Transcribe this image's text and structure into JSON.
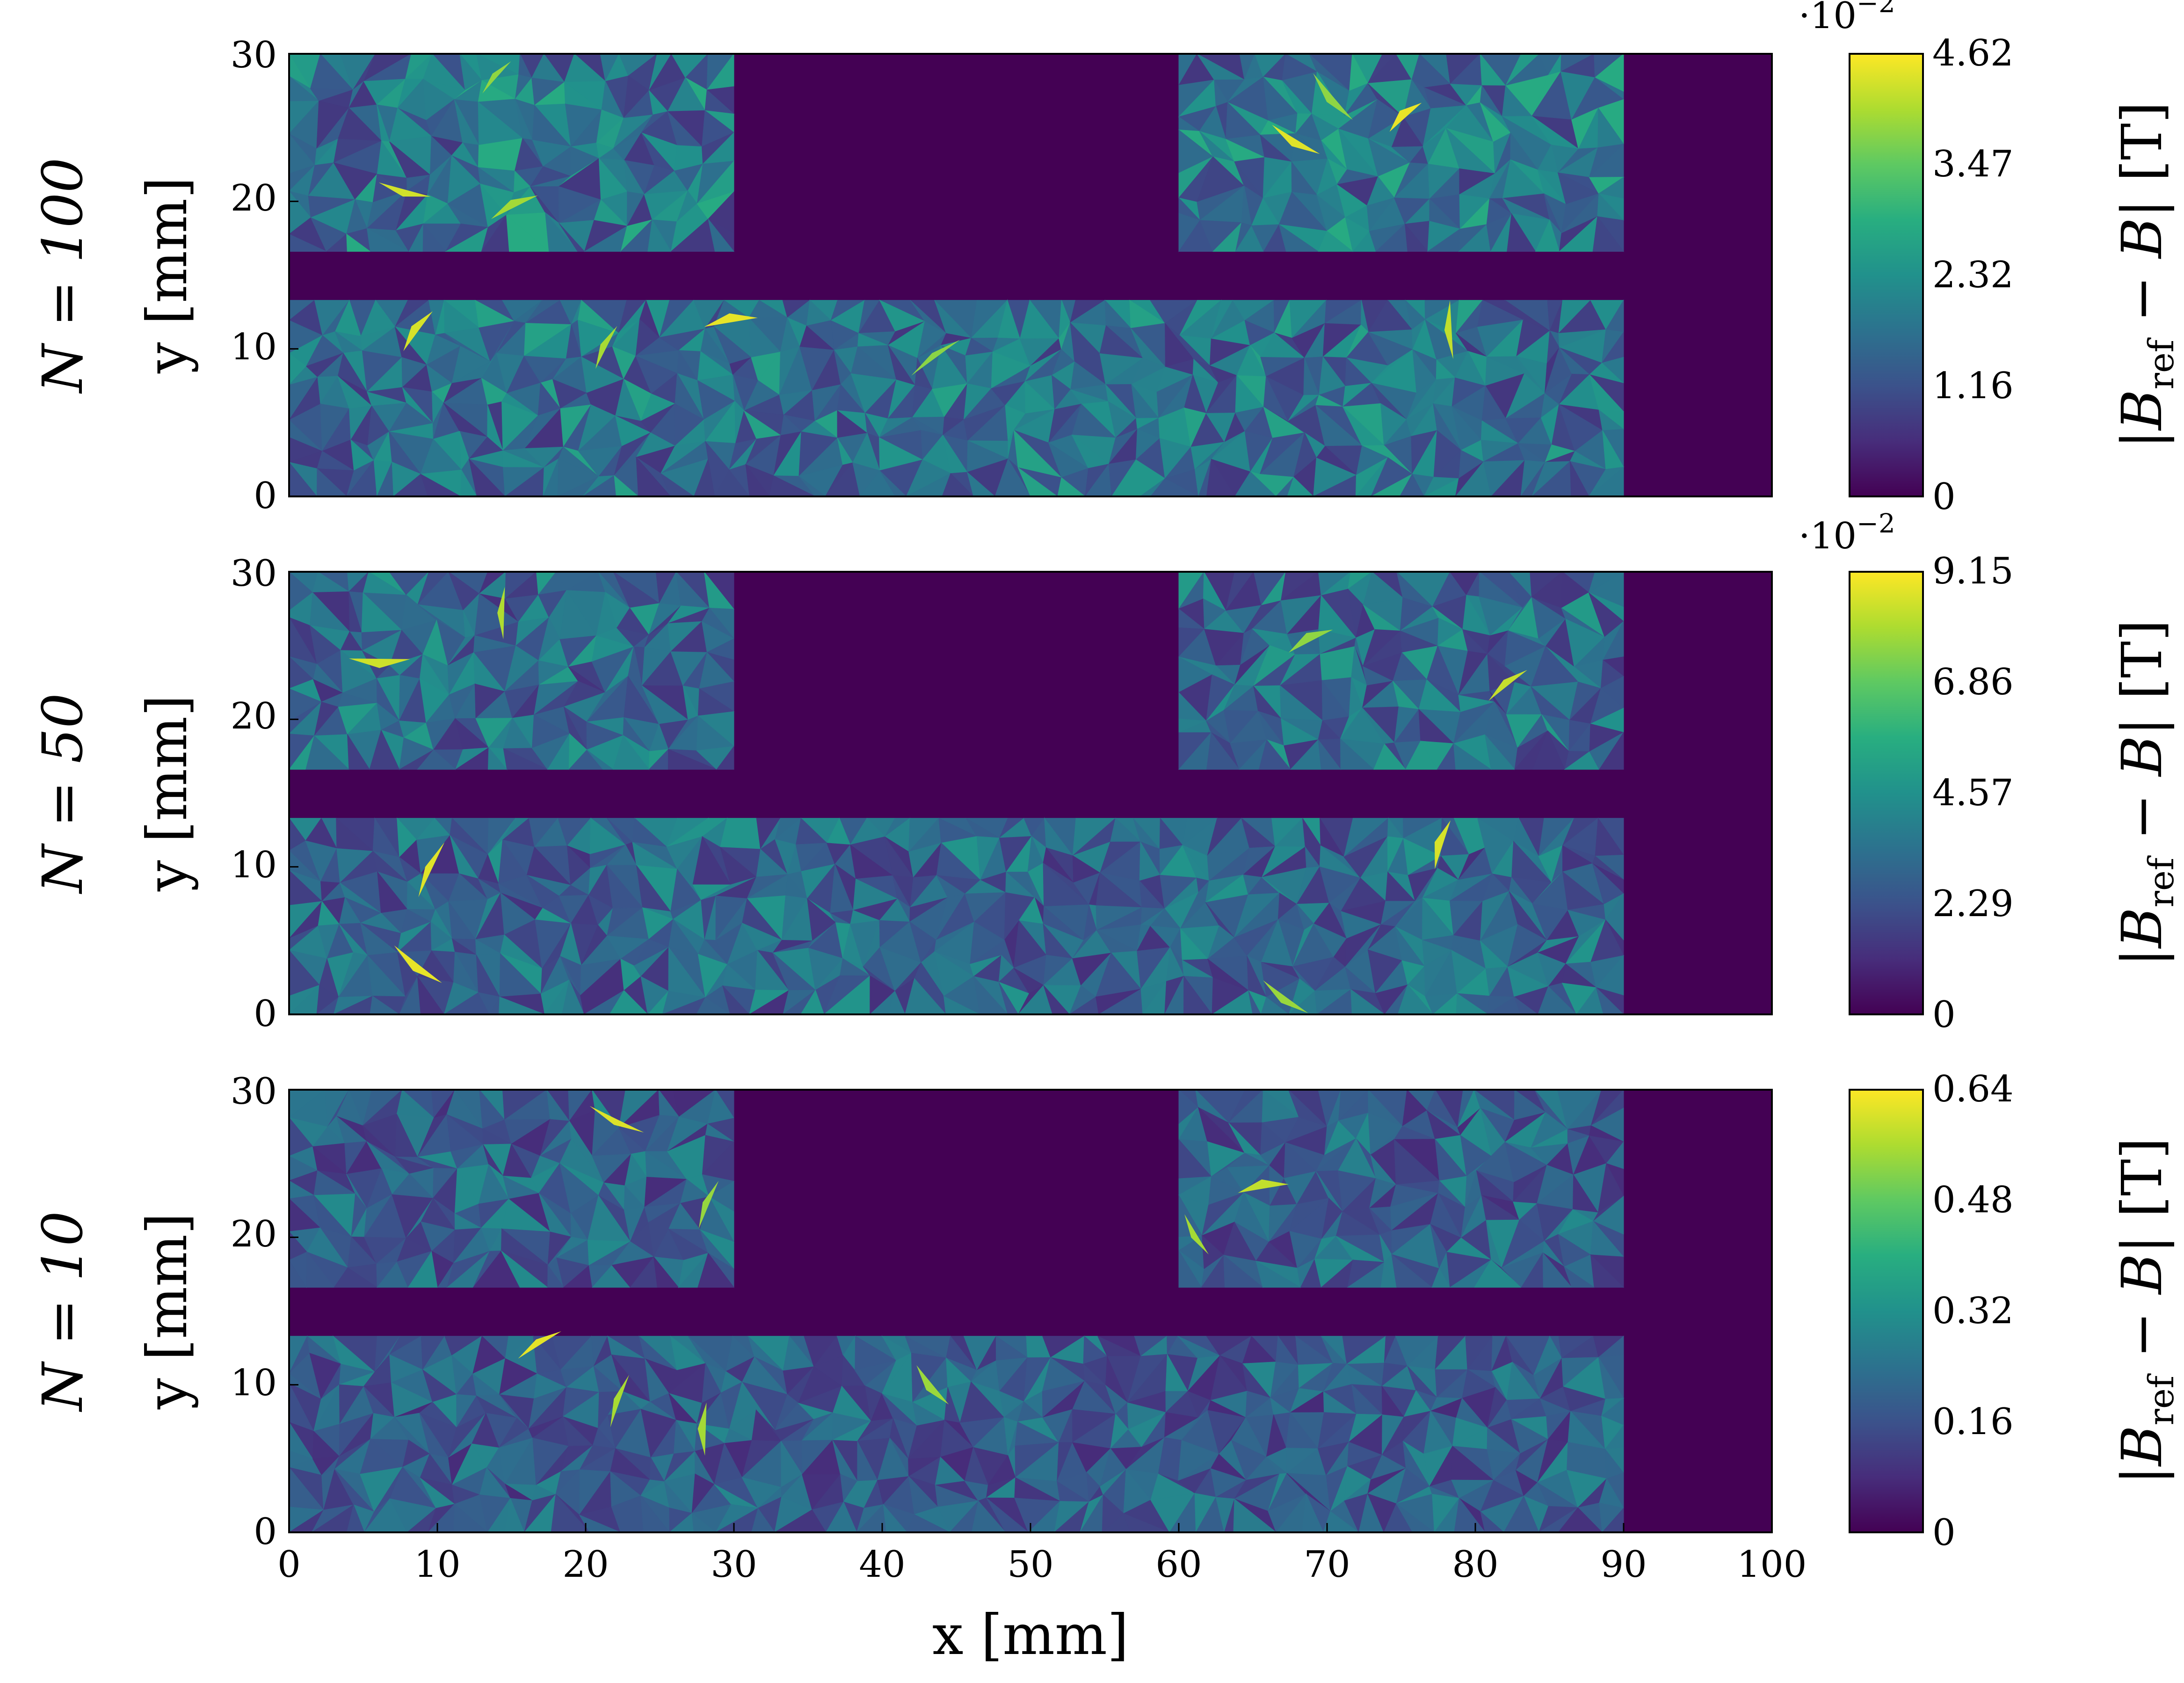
{
  "chart_data": [
    {
      "type": "heatmap",
      "panel_label": "N = 100",
      "ylabel": "y [mm]",
      "xlabel": "",
      "xlim": [
        0,
        100
      ],
      "ylim": [
        0,
        30
      ],
      "yticks": [
        "0",
        "10",
        "20",
        "30"
      ],
      "xticks": [],
      "colorbar": {
        "label": "|B_ref − B| [T]",
        "min": 0,
        "max": 4.62,
        "ticks": [
          "0",
          "1.16",
          "2.32",
          "3.47",
          "4.62"
        ],
        "scale_label": "·10^-2"
      },
      "regions": [
        {
          "name": "coil-top-left",
          "x": [
            0,
            30
          ],
          "y": [
            16.6,
            30
          ],
          "level": 0.45,
          "spots": [
            [
              14.0,
              28.4
            ],
            [
              7.8,
              20.8
            ],
            [
              15.2,
              19.6
            ]
          ]
        },
        {
          "name": "coil-top-right",
          "x": [
            60,
            90
          ],
          "y": [
            16.6,
            30
          ],
          "level": 0.45,
          "spots": [
            [
              70.4,
              27.1
            ],
            [
              67.9,
              24.2
            ],
            [
              75.3,
              25.7
            ]
          ]
        },
        {
          "name": "core-bottom",
          "x": [
            0,
            90
          ],
          "y": [
            0,
            13.3
          ],
          "level": 0.42,
          "spots": [
            [
              43.6,
              9.4
            ],
            [
              21.4,
              10.1
            ],
            [
              8.7,
              11.2
            ],
            [
              29.8,
              11.8
            ],
            [
              78.4,
              11.3
            ]
          ]
        }
      ]
    },
    {
      "type": "heatmap",
      "panel_label": "N = 50",
      "ylabel": "y [mm]",
      "xlabel": "",
      "xlim": [
        0,
        100
      ],
      "ylim": [
        0,
        30
      ],
      "yticks": [
        "0",
        "10",
        "20",
        "30"
      ],
      "xticks": [],
      "colorbar": {
        "label": "|B_ref − B| [T]",
        "min": 0,
        "max": 9.15,
        "ticks": [
          "0",
          "2.29",
          "4.57",
          "6.86",
          "9.15"
        ],
        "scale_label": "·10^-2"
      },
      "regions": [
        {
          "name": "coil-top-left",
          "x": [
            0,
            30
          ],
          "y": [
            16.6,
            30
          ],
          "level": 0.4,
          "spots": [
            [
              14.5,
              27.2
            ],
            [
              6.1,
              24.1
            ]
          ]
        },
        {
          "name": "coil-top-right",
          "x": [
            60,
            90
          ],
          "y": [
            16.6,
            30
          ],
          "level": 0.4,
          "spots": [
            [
              68.9,
              25.3
            ],
            [
              82.2,
              22.3
            ]
          ]
        },
        {
          "name": "core-bottom",
          "x": [
            0,
            90
          ],
          "y": [
            0,
            13.3
          ],
          "level": 0.38,
          "spots": [
            [
              9.6,
              9.8
            ],
            [
              77.8,
              11.5
            ],
            [
              8.7,
              3.4
            ],
            [
              67.2,
              1.2
            ]
          ]
        }
      ]
    },
    {
      "type": "heatmap",
      "panel_label": "N = 10",
      "ylabel": "y [mm]",
      "xlabel": "x [mm]",
      "xlim": [
        0,
        100
      ],
      "ylim": [
        0,
        30
      ],
      "yticks": [
        "0",
        "10",
        "20",
        "30"
      ],
      "xticks": [
        "0",
        "10",
        "20",
        "30",
        "40",
        "50",
        "60",
        "70",
        "80",
        "90",
        "100"
      ],
      "colorbar": {
        "label": "|B_ref − B| [T]",
        "min": 0,
        "max": 0.64,
        "ticks": [
          "0",
          "0.16",
          "0.32",
          "0.48",
          "0.64"
        ],
        "scale_label": ""
      },
      "regions": [
        {
          "name": "coil-top-left",
          "x": [
            0,
            30
          ],
          "y": [
            16.6,
            30
          ],
          "level": 0.35,
          "spots": [
            [
              22.1,
              28.0
            ],
            [
              28.3,
              22.2
            ]
          ]
        },
        {
          "name": "coil-top-right",
          "x": [
            60,
            90
          ],
          "y": [
            16.6,
            30
          ],
          "level": 0.35,
          "spots": [
            [
              61.2,
              20.2
            ],
            [
              65.7,
              23.3
            ]
          ]
        },
        {
          "name": "core-bottom",
          "x": [
            0,
            90
          ],
          "y": [
            0,
            13.3
          ],
          "level": 0.34,
          "spots": [
            [
              22.3,
              8.9
            ],
            [
              43.4,
              10.0
            ],
            [
              16.9,
              12.7
            ],
            [
              28.1,
              7.0
            ]
          ]
        }
      ]
    }
  ]
}
